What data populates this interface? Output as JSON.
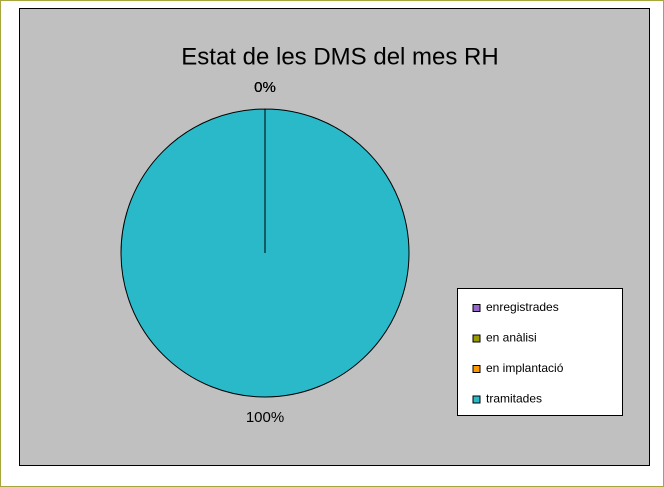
{
  "chart_data": {
    "type": "pie",
    "title": "Estat de les DMS del mes RH",
    "categories": [
      "enregistrades",
      "en anàlisi",
      "en implantació",
      "tramitades"
    ],
    "values": [
      0,
      0,
      0,
      100
    ],
    "value_labels": [
      "0%",
      "0%",
      "0%",
      "100%"
    ],
    "colors": [
      "#9966cc",
      "#999900",
      "#ff9900",
      "#29b9c9"
    ],
    "legend": "right"
  }
}
